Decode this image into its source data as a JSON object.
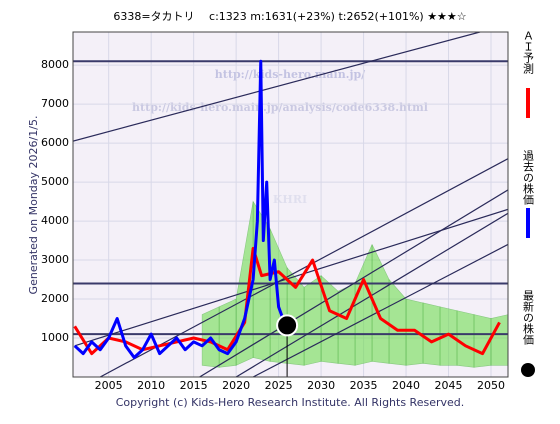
{
  "chart_data": {
    "type": "line",
    "title": "6338=タカトリ　 c:1323  m:1631(+23%)  t:2652(+101%)  ★★★☆",
    "side_note": "Generated on Monday 2026/1/5.",
    "footer": "Copyright (c) Kids-Hero Research Institute. All Rights Reserved.",
    "watermarks": [
      "http://kids-hero.main.jp/",
      "http://kids-hero.main.jp/analysis/code6338.html",
      "KHRI"
    ],
    "xlim": [
      2000.8,
      2052
    ],
    "ylim": [
      0,
      8850
    ],
    "xticks": [
      2005,
      2010,
      2015,
      2020,
      2025,
      2030,
      2035,
      2040,
      2045,
      2050
    ],
    "yticks": [
      1000,
      2000,
      3000,
      4000,
      5000,
      6000,
      7000,
      8000
    ],
    "grid": true,
    "reference_lines": {
      "color": "#3a3a6a",
      "values": [
        1100,
        2400,
        8100
      ]
    },
    "trend_lines": {
      "color": "#2a2a5a",
      "lines": [
        [
          2000.8,
          6050,
          2048.7,
          8850
        ],
        [
          2004,
          0,
          2052,
          5600
        ],
        [
          2015.7,
          0,
          2052,
          4800
        ],
        [
          2020,
          0,
          2052,
          4200
        ],
        [
          2022,
          0,
          2052,
          3400
        ],
        [
          2001,
          800,
          2052,
          4300
        ]
      ]
    },
    "band": {
      "color": "#66dd44",
      "x": [
        2016,
        2018,
        2020,
        2022,
        2024,
        2026,
        2028,
        2030,
        2032,
        2034,
        2036,
        2038,
        2040,
        2042,
        2044,
        2046,
        2048,
        2050,
        2052
      ],
      "lower": [
        300,
        250,
        300,
        500,
        400,
        350,
        300,
        400,
        350,
        300,
        400,
        350,
        300,
        350,
        300,
        300,
        250,
        300,
        300
      ],
      "upper": [
        1600,
        1800,
        2000,
        4500,
        3800,
        2800,
        2300,
        2600,
        2200,
        2400,
        3400,
        2500,
        2000,
        1900,
        1800,
        1700,
        1600,
        1500,
        1600
      ]
    },
    "series": [
      {
        "name": "ＡＩ予測",
        "color": "#ff0000",
        "x": [
          2001,
          2003,
          2005,
          2007,
          2009,
          2011,
          2013,
          2015,
          2017,
          2019,
          2021,
          2022,
          2023,
          2025,
          2027,
          2029,
          2031,
          2033,
          2035,
          2037,
          2039,
          2041,
          2043,
          2045,
          2047,
          2049,
          2051
        ],
        "values": [
          1300,
          600,
          1000,
          900,
          700,
          800,
          900,
          1000,
          900,
          700,
          1400,
          3300,
          2600,
          2700,
          2300,
          3000,
          1700,
          1500,
          2500,
          1500,
          1200,
          1200,
          900,
          1100,
          800,
          600,
          1400
        ]
      },
      {
        "name": "過去の株価",
        "color": "#0000ff",
        "x": [
          2001,
          2002,
          2003,
          2004,
          2005,
          2006,
          2007,
          2008,
          2009,
          2010,
          2011,
          2012,
          2013,
          2014,
          2015,
          2016,
          2017,
          2018,
          2019,
          2020,
          2021,
          2022,
          2022.5,
          2022.9,
          2023.2,
          2023.6,
          2024,
          2024.5,
          2025,
          2025.5
        ],
        "values": [
          800,
          600,
          900,
          700,
          1000,
          1500,
          800,
          500,
          700,
          1100,
          600,
          800,
          1000,
          700,
          900,
          800,
          1000,
          700,
          600,
          900,
          1500,
          2500,
          4000,
          8100,
          3500,
          5000,
          2500,
          3000,
          1800,
          1500
        ]
      },
      {
        "name": "最新の株価",
        "color": "#000000",
        "marker": "circle",
        "x": [
          2026
        ],
        "values": [
          1323
        ]
      }
    ]
  }
}
